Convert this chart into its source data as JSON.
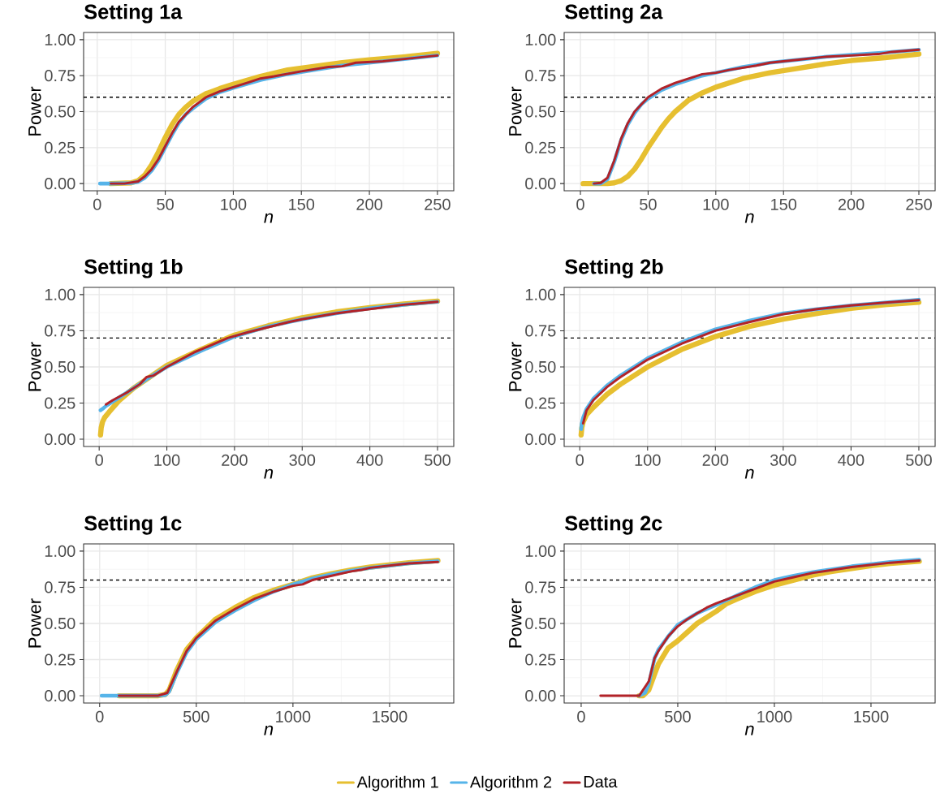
{
  "chart_data": [
    {
      "type": "line",
      "title": "Setting 1a",
      "xlabel": "n",
      "ylabel": "Power",
      "xlim": [
        -10,
        262
      ],
      "ylim": [
        -0.05,
        1.05
      ],
      "xticks": [
        0,
        50,
        100,
        150,
        200,
        250
      ],
      "yticks": [
        {
          "value": 0,
          "label": "0.00"
        },
        {
          "value": 0.25,
          "label": "0.25"
        },
        {
          "value": 0.5,
          "label": "0.50"
        },
        {
          "value": 0.75,
          "label": "0.75"
        },
        {
          "value": 1,
          "label": "1.00"
        }
      ],
      "grid": true,
      "line_style": "solid",
      "ref_lines": [
        {
          "axis": "y",
          "value": 0.6,
          "color": "#000000",
          "line_style": "dashed"
        }
      ],
      "series": [
        {
          "color": "#e6bf30",
          "x": [
            10,
            25,
            30,
            35,
            40,
            45,
            50,
            55,
            60,
            65,
            70,
            80,
            90,
            100,
            120,
            140,
            160,
            180,
            200,
            225,
            250
          ],
          "values": [
            0,
            0.005,
            0.02,
            0.06,
            0.13,
            0.22,
            0.32,
            0.41,
            0.48,
            0.53,
            0.57,
            0.625,
            0.66,
            0.69,
            0.745,
            0.79,
            0.815,
            0.84,
            0.86,
            0.88,
            0.905
          ]
        },
        {
          "color": "#56b4e9",
          "x": [
            2,
            10,
            25,
            30,
            35,
            40,
            45,
            50,
            55,
            60,
            65,
            70,
            80,
            90,
            100,
            120,
            140,
            160,
            180,
            200,
            225,
            250
          ],
          "values": [
            0,
            0,
            0.003,
            0.012,
            0.04,
            0.09,
            0.16,
            0.25,
            0.34,
            0.42,
            0.48,
            0.52,
            0.59,
            0.635,
            0.665,
            0.72,
            0.76,
            0.79,
            0.82,
            0.84,
            0.865,
            0.89
          ]
        },
        {
          "color": "#b22228",
          "x": [
            10,
            20,
            30,
            35,
            40,
            45,
            50,
            55,
            60,
            70,
            80,
            90,
            100,
            110,
            120,
            130,
            150,
            170,
            180,
            190,
            210,
            230,
            250
          ],
          "values": [
            0,
            0,
            0.015,
            0.05,
            0.1,
            0.17,
            0.26,
            0.35,
            0.43,
            0.53,
            0.6,
            0.64,
            0.67,
            0.7,
            0.73,
            0.745,
            0.78,
            0.81,
            0.815,
            0.84,
            0.85,
            0.87,
            0.89
          ]
        }
      ]
    },
    {
      "type": "line",
      "title": "Setting 2a",
      "xlabel": "n",
      "ylabel": "Power",
      "xlim": [
        -12,
        262
      ],
      "ylim": [
        -0.05,
        1.05
      ],
      "xticks": [
        0,
        50,
        100,
        150,
        200,
        250
      ],
      "yticks": [
        {
          "value": 0,
          "label": "0.00"
        },
        {
          "value": 0.25,
          "label": "0.25"
        },
        {
          "value": 0.5,
          "label": "0.50"
        },
        {
          "value": 0.75,
          "label": "0.75"
        },
        {
          "value": 1,
          "label": "1.00"
        }
      ],
      "grid": true,
      "line_style": "solid",
      "ref_lines": [
        {
          "axis": "y",
          "value": 0.6,
          "color": "#000000",
          "line_style": "dashed"
        }
      ],
      "series": [
        {
          "color": "#e6bf30",
          "x": [
            2,
            20,
            25,
            30,
            35,
            40,
            45,
            50,
            55,
            60,
            65,
            70,
            80,
            90,
            100,
            120,
            140,
            160,
            180,
            200,
            225,
            250
          ],
          "values": [
            0,
            0,
            0.005,
            0.02,
            0.05,
            0.1,
            0.17,
            0.25,
            0.32,
            0.39,
            0.45,
            0.5,
            0.58,
            0.63,
            0.67,
            0.73,
            0.77,
            0.8,
            0.83,
            0.855,
            0.875,
            0.9
          ]
        },
        {
          "color": "#56b4e9",
          "x": [
            10,
            15,
            20,
            25,
            30,
            35,
            40,
            45,
            50,
            60,
            70,
            80,
            90,
            100,
            120,
            140,
            160,
            180,
            200,
            225,
            250
          ],
          "values": [
            0,
            0,
            0.03,
            0.15,
            0.3,
            0.41,
            0.49,
            0.55,
            0.59,
            0.65,
            0.69,
            0.72,
            0.75,
            0.77,
            0.81,
            0.84,
            0.86,
            0.88,
            0.895,
            0.91,
            0.93
          ]
        },
        {
          "color": "#b22228",
          "x": [
            10,
            15,
            20,
            25,
            30,
            35,
            40,
            50,
            60,
            70,
            80,
            90,
            100,
            110,
            130,
            140,
            160,
            180,
            200,
            220,
            230,
            250
          ],
          "values": [
            0,
            0.005,
            0.04,
            0.16,
            0.31,
            0.42,
            0.5,
            0.6,
            0.66,
            0.7,
            0.73,
            0.76,
            0.77,
            0.79,
            0.82,
            0.84,
            0.86,
            0.88,
            0.89,
            0.9,
            0.915,
            0.93
          ]
        }
      ]
    },
    {
      "type": "line",
      "title": "Setting 1b",
      "xlabel": "n",
      "ylabel": "Power",
      "xlim": [
        -23,
        524
      ],
      "ylim": [
        -0.05,
        1.05
      ],
      "xticks": [
        0,
        100,
        200,
        300,
        400,
        500
      ],
      "yticks": [
        {
          "value": 0,
          "label": "0.00"
        },
        {
          "value": 0.25,
          "label": "0.25"
        },
        {
          "value": 0.5,
          "label": "0.50"
        },
        {
          "value": 0.75,
          "label": "0.75"
        },
        {
          "value": 1,
          "label": "1.00"
        }
      ],
      "grid": true,
      "line_style": "solid",
      "ref_lines": [
        {
          "axis": "y",
          "value": 0.7,
          "color": "#000000",
          "line_style": "dashed"
        }
      ],
      "series": [
        {
          "color": "#e6bf30",
          "x": [
            2,
            3,
            5,
            8,
            15,
            30,
            50,
            75,
            100,
            150,
            200,
            250,
            300,
            350,
            400,
            450,
            500
          ],
          "values": [
            0.03,
            0.08,
            0.12,
            0.15,
            0.19,
            0.27,
            0.35,
            0.43,
            0.51,
            0.62,
            0.72,
            0.785,
            0.84,
            0.88,
            0.91,
            0.935,
            0.955
          ]
        },
        {
          "color": "#56b4e9",
          "x": [
            2,
            5,
            10,
            20,
            50,
            75,
            100,
            150,
            200,
            250,
            300,
            350,
            400,
            450,
            500
          ],
          "values": [
            0.2,
            0.21,
            0.23,
            0.26,
            0.35,
            0.43,
            0.5,
            0.61,
            0.71,
            0.78,
            0.83,
            0.87,
            0.905,
            0.93,
            0.95
          ]
        },
        {
          "color": "#b22228",
          "x": [
            10,
            20,
            40,
            60,
            70,
            80,
            100,
            140,
            160,
            190,
            220,
            280,
            300,
            350,
            400,
            450,
            500
          ],
          "values": [
            0.24,
            0.27,
            0.32,
            0.38,
            0.43,
            0.44,
            0.5,
            0.6,
            0.64,
            0.7,
            0.74,
            0.81,
            0.83,
            0.87,
            0.9,
            0.93,
            0.95
          ]
        }
      ]
    },
    {
      "type": "line",
      "title": "Setting 2b",
      "xlabel": "n",
      "ylabel": "Power",
      "xlim": [
        -23,
        524
      ],
      "ylim": [
        -0.05,
        1.05
      ],
      "xticks": [
        0,
        100,
        200,
        300,
        400,
        500
      ],
      "yticks": [
        {
          "value": 0,
          "label": "0.00"
        },
        {
          "value": 0.25,
          "label": "0.25"
        },
        {
          "value": 0.5,
          "label": "0.50"
        },
        {
          "value": 0.75,
          "label": "0.75"
        },
        {
          "value": 1,
          "label": "1.00"
        }
      ],
      "grid": true,
      "line_style": "solid",
      "ref_lines": [
        {
          "axis": "y",
          "value": 0.7,
          "color": "#000000",
          "line_style": "dashed"
        }
      ],
      "series": [
        {
          "color": "#e6bf30",
          "x": [
            2,
            3,
            5,
            10,
            20,
            40,
            60,
            80,
            100,
            150,
            200,
            250,
            300,
            350,
            400,
            450,
            500
          ],
          "values": [
            0.03,
            0.08,
            0.12,
            0.17,
            0.22,
            0.31,
            0.38,
            0.44,
            0.5,
            0.62,
            0.71,
            0.78,
            0.83,
            0.87,
            0.905,
            0.93,
            0.947
          ]
        },
        {
          "color": "#56b4e9",
          "x": [
            2,
            3,
            5,
            10,
            20,
            40,
            60,
            80,
            100,
            150,
            200,
            250,
            300,
            350,
            400,
            450,
            500
          ],
          "values": [
            0.07,
            0.11,
            0.15,
            0.21,
            0.28,
            0.37,
            0.44,
            0.5,
            0.56,
            0.67,
            0.76,
            0.82,
            0.87,
            0.9,
            0.925,
            0.945,
            0.965
          ]
        },
        {
          "color": "#b22228",
          "x": [
            5,
            10,
            20,
            40,
            60,
            80,
            100,
            150,
            200,
            250,
            300,
            350,
            400,
            450,
            500
          ],
          "values": [
            0.11,
            0.2,
            0.27,
            0.36,
            0.43,
            0.49,
            0.55,
            0.66,
            0.75,
            0.81,
            0.865,
            0.9,
            0.925,
            0.945,
            0.962
          ]
        }
      ]
    },
    {
      "type": "line",
      "title": "Setting 1c",
      "xlabel": "n",
      "ylabel": "Power",
      "xlim": [
        -83,
        1832
      ],
      "ylim": [
        -0.05,
        1.05
      ],
      "xticks": [
        0,
        500,
        1000,
        1500
      ],
      "yticks": [
        {
          "value": 0,
          "label": "0.00"
        },
        {
          "value": 0.25,
          "label": "0.25"
        },
        {
          "value": 0.5,
          "label": "0.50"
        },
        {
          "value": 0.75,
          "label": "0.75"
        },
        {
          "value": 1,
          "label": "1.00"
        }
      ],
      "grid": true,
      "line_style": "solid",
      "ref_lines": [
        {
          "axis": "y",
          "value": 0.8,
          "color": "#000000",
          "line_style": "dashed"
        }
      ],
      "series": [
        {
          "color": "#e6bf30",
          "x": [
            100,
            300,
            340,
            360,
            400,
            450,
            500,
            600,
            700,
            800,
            900,
            1000,
            1100,
            1200,
            1300,
            1400,
            1500,
            1600,
            1750
          ],
          "values": [
            0,
            0,
            0.01,
            0.04,
            0.18,
            0.32,
            0.4,
            0.53,
            0.61,
            0.68,
            0.73,
            0.77,
            0.815,
            0.845,
            0.87,
            0.89,
            0.905,
            0.92,
            0.935
          ]
        },
        {
          "color": "#56b4e9",
          "x": [
            10,
            300,
            340,
            360,
            400,
            450,
            500,
            600,
            700,
            800,
            900,
            1000,
            1100,
            1200,
            1300,
            1400,
            1500,
            1600,
            1750
          ],
          "values": [
            0,
            0,
            0.005,
            0.03,
            0.16,
            0.3,
            0.39,
            0.51,
            0.59,
            0.66,
            0.72,
            0.77,
            0.81,
            0.84,
            0.865,
            0.885,
            0.9,
            0.915,
            0.93
          ]
        },
        {
          "color": "#b22228",
          "x": [
            100,
            300,
            350,
            400,
            450,
            500,
            600,
            700,
            800,
            900,
            1000,
            1050,
            1100,
            1200,
            1300,
            1350,
            1400,
            1500,
            1600,
            1750
          ],
          "values": [
            0,
            0,
            0.02,
            0.17,
            0.31,
            0.4,
            0.52,
            0.6,
            0.67,
            0.72,
            0.76,
            0.77,
            0.8,
            0.83,
            0.86,
            0.87,
            0.885,
            0.9,
            0.915,
            0.925
          ]
        }
      ]
    },
    {
      "type": "line",
      "title": "Setting 2c",
      "xlabel": "n",
      "ylabel": "Power",
      "xlim": [
        -88,
        1832
      ],
      "ylim": [
        -0.05,
        1.05
      ],
      "xticks": [
        0,
        500,
        1000,
        1500
      ],
      "yticks": [
        {
          "value": 0,
          "label": "0.00"
        },
        {
          "value": 0.25,
          "label": "0.25"
        },
        {
          "value": 0.5,
          "label": "0.50"
        },
        {
          "value": 0.75,
          "label": "0.75"
        },
        {
          "value": 1,
          "label": "1.00"
        }
      ],
      "grid": true,
      "line_style": "solid",
      "legend": "bottom",
      "ref_lines": [
        {
          "axis": "y",
          "value": 0.8,
          "color": "#000000",
          "line_style": "dashed"
        }
      ],
      "series": [
        {
          "name": "Algorithm 1",
          "color": "#e6bf30",
          "x": [
            300,
            320,
            350,
            380,
            400,
            450,
            500,
            600,
            700,
            750,
            800,
            900,
            1000,
            1100,
            1200,
            1300,
            1400,
            1500,
            1600,
            1750
          ],
          "values": [
            0,
            0,
            0.04,
            0.15,
            0.22,
            0.33,
            0.38,
            0.5,
            0.585,
            0.635,
            0.665,
            0.72,
            0.765,
            0.8,
            0.835,
            0.86,
            0.88,
            0.9,
            0.915,
            0.93
          ]
        },
        {
          "name": "Algorithm 2",
          "color": "#56b4e9",
          "x": [
            300,
            330,
            350,
            380,
            400,
            450,
            500,
            600,
            700,
            750,
            800,
            900,
            1000,
            1100,
            1200,
            1300,
            1400,
            1500,
            1600,
            1750
          ],
          "values": [
            0,
            0.02,
            0.08,
            0.26,
            0.32,
            0.41,
            0.49,
            0.57,
            0.63,
            0.66,
            0.69,
            0.75,
            0.8,
            0.83,
            0.855,
            0.875,
            0.895,
            0.91,
            0.925,
            0.94
          ]
        },
        {
          "name": "Data",
          "color": "#b22228",
          "x": [
            100,
            300,
            350,
            380,
            400,
            450,
            500,
            550,
            600,
            650,
            700,
            800,
            900,
            1000,
            1100,
            1200,
            1300,
            1400,
            1500,
            1600,
            1750
          ],
          "values": [
            0,
            0,
            0.1,
            0.26,
            0.31,
            0.41,
            0.48,
            0.53,
            0.57,
            0.61,
            0.64,
            0.69,
            0.74,
            0.79,
            0.82,
            0.85,
            0.87,
            0.89,
            0.905,
            0.92,
            0.935
          ]
        }
      ]
    }
  ]
}
